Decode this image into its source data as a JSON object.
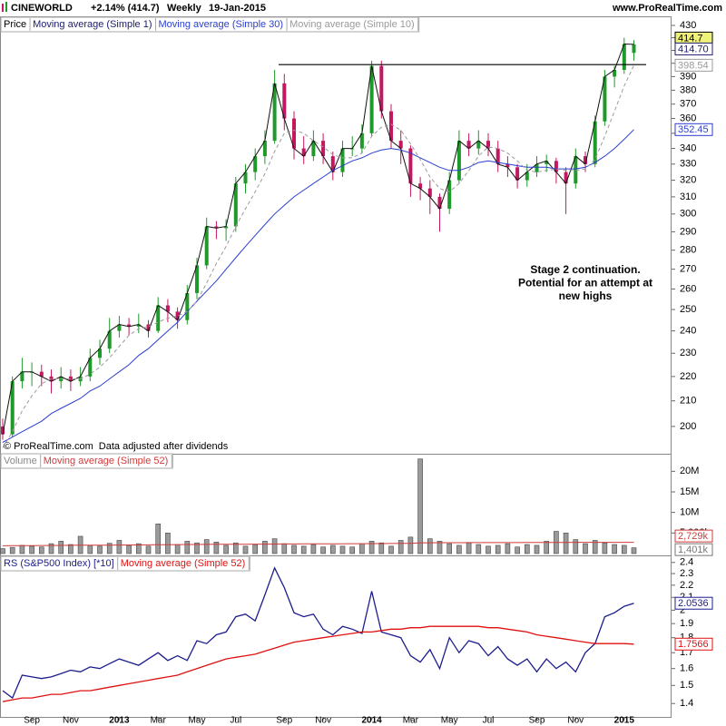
{
  "header": {
    "symbol": "CINEWORLD",
    "change": "+2.14% (414.7)",
    "period": "Weekly",
    "date": "19-Jan-2015",
    "site": "www.ProRealTime.com"
  },
  "chart_data": [
    {
      "type": "candlestick",
      "title": "Price",
      "log_scale": true,
      "categories": [
        null,
        null,
        null,
        "Sep",
        null,
        null,
        null,
        "Nov",
        null,
        null,
        null,
        null,
        "2013",
        null,
        null,
        null,
        "Mar",
        null,
        null,
        null,
        "May",
        null,
        null,
        null,
        "Jul",
        null,
        null,
        null,
        null,
        "Sep",
        null,
        null,
        null,
        "Nov",
        null,
        null,
        null,
        null,
        "2014",
        null,
        null,
        null,
        "Mar",
        null,
        null,
        null,
        "May",
        null,
        null,
        null,
        "Jul",
        null,
        null,
        null,
        null,
        "Sep",
        null,
        null,
        null,
        "Nov",
        null,
        null,
        null,
        null,
        "2015",
        null
      ],
      "candles": [
        [
          200,
          203,
          195,
          197
        ],
        [
          197,
          220,
          196,
          218
        ],
        [
          218,
          228,
          215,
          222
        ],
        [
          222,
          226,
          216,
          222
        ],
        [
          222,
          225,
          216,
          220
        ],
        [
          220,
          223,
          213,
          218
        ],
        [
          218,
          224,
          215,
          220
        ],
        [
          220,
          223,
          214,
          218
        ],
        [
          218,
          224,
          216,
          220
        ],
        [
          220,
          232,
          218,
          228
        ],
        [
          228,
          236,
          225,
          232
        ],
        [
          232,
          246,
          230,
          240
        ],
        [
          240,
          247,
          237,
          243
        ],
        [
          243,
          246,
          238,
          242
        ],
        [
          242,
          248,
          239,
          243
        ],
        [
          243,
          245,
          237,
          240
        ],
        [
          240,
          256,
          239,
          252
        ],
        [
          252,
          255,
          244,
          249
        ],
        [
          249,
          251,
          241,
          245
        ],
        [
          245,
          262,
          243,
          258
        ],
        [
          258,
          276,
          255,
          272
        ],
        [
          272,
          298,
          270,
          293
        ],
        [
          293,
          296,
          286,
          292
        ],
        [
          292,
          297,
          285,
          293
        ],
        [
          293,
          322,
          290,
          318
        ],
        [
          318,
          330,
          312,
          325
        ],
        [
          325,
          340,
          320,
          335
        ],
        [
          335,
          352,
          330,
          345
        ],
        [
          345,
          395,
          343,
          385
        ],
        [
          385,
          392,
          352,
          360
        ],
        [
          360,
          365,
          333,
          340
        ],
        [
          340,
          348,
          330,
          335
        ],
        [
          335,
          352,
          332,
          345
        ],
        [
          345,
          350,
          330,
          335
        ],
        [
          335,
          338,
          320,
          325
        ],
        [
          325,
          345,
          322,
          340
        ],
        [
          340,
          348,
          335,
          340
        ],
        [
          340,
          356,
          337,
          350
        ],
        [
          350,
          402,
          348,
          398
        ],
        [
          398,
          402,
          360,
          365
        ],
        [
          365,
          370,
          340,
          345
        ],
        [
          345,
          352,
          330,
          340
        ],
        [
          340,
          342,
          310,
          318
        ],
        [
          318,
          322,
          308,
          315
        ],
        [
          315,
          320,
          300,
          310
        ],
        [
          310,
          312,
          290,
          303
        ],
        [
          303,
          325,
          300,
          320
        ],
        [
          320,
          352,
          318,
          345
        ],
        [
          345,
          350,
          335,
          340
        ],
        [
          340,
          352,
          336,
          345
        ],
        [
          345,
          350,
          335,
          340
        ],
        [
          340,
          345,
          325,
          330
        ],
        [
          330,
          335,
          322,
          328
        ],
        [
          328,
          330,
          315,
          320
        ],
        [
          320,
          330,
          316,
          325
        ],
        [
          325,
          335,
          322,
          330
        ],
        [
          330,
          336,
          325,
          332
        ],
        [
          332,
          334,
          318,
          325
        ],
        [
          325,
          328,
          300,
          318
        ],
        [
          318,
          340,
          315,
          335
        ],
        [
          335,
          338,
          325,
          330
        ],
        [
          330,
          362,
          328,
          358
        ],
        [
          358,
          395,
          355,
          390
        ],
        [
          390,
          398,
          382,
          395
        ],
        [
          395,
          420,
          392,
          415
        ],
        [
          408,
          418,
          402,
          414.7
        ]
      ],
      "up_color": "#1f9a2a",
      "down_color": "#c4175f",
      "last_label": "414.7",
      "last_label_fill": "#eef27a",
      "series": [
        {
          "name": "Moving average (Simple 1)",
          "color": "#1c1c6e",
          "line_color": "#111111",
          "last_label": "414.70",
          "values": [
            197,
            218,
            222,
            222,
            220,
            218,
            220,
            218,
            220,
            228,
            232,
            240,
            243,
            242,
            243,
            240,
            252,
            249,
            245,
            258,
            272,
            293,
            292,
            293,
            318,
            325,
            335,
            345,
            385,
            360,
            340,
            335,
            345,
            335,
            325,
            340,
            340,
            350,
            398,
            365,
            345,
            340,
            318,
            315,
            310,
            303,
            320,
            345,
            340,
            345,
            340,
            330,
            328,
            320,
            325,
            330,
            332,
            325,
            318,
            335,
            330,
            358,
            390,
            395,
            415,
            414.7
          ]
        },
        {
          "name": "Moving average (Simple 30)",
          "color": "#2a3fd0",
          "last_label": "352.45",
          "values": [
            194,
            196,
            198,
            200,
            202,
            205,
            207,
            209,
            211,
            214,
            216,
            219,
            222,
            225,
            229,
            232,
            236,
            240,
            244,
            249,
            254,
            259,
            264,
            270,
            276,
            282,
            288,
            294,
            300,
            305,
            310,
            314,
            318,
            322,
            326,
            329,
            332,
            334,
            337,
            339,
            340,
            339,
            337,
            334,
            331,
            328,
            326,
            326,
            328,
            331,
            332,
            331,
            330,
            329,
            328,
            328,
            328,
            327,
            327,
            327,
            328,
            331,
            335,
            340,
            346,
            352.45
          ]
        },
        {
          "name": "Moving average (Simple 10)",
          "color": "#9a9a9a",
          "dash": true,
          "last_label": "398.54",
          "values": [
            192,
            198,
            206,
            212,
            217,
            219,
            219,
            219,
            219,
            221,
            224,
            228,
            233,
            238,
            241,
            242,
            244,
            246,
            247,
            249,
            254,
            263,
            273,
            282,
            293,
            303,
            313,
            324,
            338,
            350,
            352,
            350,
            345,
            341,
            336,
            334,
            334,
            337,
            348,
            354,
            356,
            352,
            343,
            333,
            322,
            315,
            313,
            318,
            326,
            335,
            341,
            340,
            337,
            332,
            326,
            325,
            326,
            327,
            326,
            326,
            327,
            333,
            348,
            365,
            383,
            398.54
          ]
        }
      ],
      "ylim": [
        190.5,
        436
      ],
      "yticks": [
        200,
        210,
        220,
        230,
        240,
        250,
        260,
        270,
        280,
        290,
        300,
        310,
        320,
        330,
        340,
        350,
        360,
        370,
        380,
        390,
        400,
        410,
        420,
        430
      ],
      "resistance": 399,
      "annotation": [
        "Stage 2 continuation.",
        "Potential for an attempt at",
        "new highs"
      ],
      "footer": [
        "© ProRealTime.com",
        "Data adjusted after dividends"
      ]
    },
    {
      "type": "bar",
      "title": "Volume",
      "color": "#9a9a9a",
      "title_color": "#888888",
      "values": [
        1.2,
        1.5,
        2.0,
        1.8,
        1.6,
        2.4,
        3.0,
        2.2,
        4.2,
        2.0,
        1.8,
        2.5,
        3.2,
        2.0,
        2.4,
        1.8,
        7.2,
        5.0,
        2.2,
        3.0,
        2.6,
        3.4,
        2.8,
        2.0,
        2.6,
        1.8,
        2.2,
        3.0,
        3.6,
        2.4,
        2.0,
        1.8,
        2.2,
        1.6,
        2.0,
        1.8,
        1.6,
        2.4,
        3.0,
        2.6,
        1.8,
        3.2,
        4.0,
        23.0,
        3.6,
        3.0,
        2.4,
        2.0,
        2.6,
        2.2,
        1.8,
        2.0,
        2.4,
        1.6,
        2.2,
        2.0,
        3.0,
        5.4,
        5.0,
        3.4,
        2.4,
        3.2,
        2.6,
        2.2,
        2.0,
        1.401
      ],
      "last_label": "1,401k",
      "last_label_fill": "#ffffff",
      "series": [
        {
          "name": "Moving average (Simple 52)",
          "color": "#d03a3a",
          "last_label": "2,729k",
          "values": [
            1.9,
            1.92,
            1.93,
            1.95,
            1.96,
            1.97,
            1.99,
            2.0,
            2.02,
            2.03,
            2.04,
            2.06,
            2.07,
            2.09,
            2.1,
            2.12,
            2.14,
            2.16,
            2.18,
            2.2,
            2.21,
            2.23,
            2.25,
            2.26,
            2.27,
            2.28,
            2.29,
            2.3,
            2.32,
            2.33,
            2.34,
            2.35,
            2.36,
            2.37,
            2.38,
            2.39,
            2.4,
            2.41,
            2.42,
            2.43,
            2.45,
            2.46,
            2.48,
            2.62,
            2.63,
            2.64,
            2.65,
            2.65,
            2.66,
            2.66,
            2.66,
            2.67,
            2.67,
            2.67,
            2.68,
            2.68,
            2.69,
            2.71,
            2.72,
            2.73,
            2.73,
            2.73,
            2.73,
            2.73,
            2.73,
            2.729
          ]
        }
      ],
      "ylim": [
        0,
        23.6
      ],
      "yticks": [
        {
          "value": 5,
          "label": "5,000k"
        },
        {
          "value": 10,
          "label": "10M"
        },
        {
          "value": 15,
          "label": "15M"
        },
        {
          "value": 20,
          "label": "20M"
        }
      ]
    },
    {
      "type": "line",
      "log_scale": true,
      "series": [
        {
          "name": "RS (S&P500 Index) [*10]",
          "color": "#1c1c8e",
          "last_label": "2.0536",
          "values": [
            1.47,
            1.43,
            1.56,
            1.55,
            1.54,
            1.55,
            1.57,
            1.59,
            1.58,
            1.61,
            1.6,
            1.63,
            1.66,
            1.64,
            1.62,
            1.66,
            1.7,
            1.65,
            1.68,
            1.65,
            1.78,
            1.76,
            1.82,
            1.84,
            1.95,
            1.97,
            1.92,
            2.12,
            2.35,
            2.18,
            1.98,
            1.95,
            1.97,
            1.86,
            1.82,
            1.88,
            1.86,
            1.83,
            2.15,
            1.84,
            1.82,
            1.8,
            1.68,
            1.64,
            1.72,
            1.6,
            1.8,
            1.7,
            1.78,
            1.76,
            1.68,
            1.74,
            1.66,
            1.62,
            1.66,
            1.58,
            1.66,
            1.6,
            1.64,
            1.58,
            1.7,
            1.76,
            1.95,
            1.98,
            2.03,
            2.0536
          ]
        },
        {
          "name": "Moving average (Simple 52)",
          "color": "#e01010",
          "last_label": "1.7566",
          "values": [
            1.41,
            1.42,
            1.43,
            1.43,
            1.44,
            1.45,
            1.45,
            1.46,
            1.47,
            1.47,
            1.48,
            1.49,
            1.5,
            1.51,
            1.52,
            1.53,
            1.54,
            1.55,
            1.56,
            1.58,
            1.6,
            1.62,
            1.64,
            1.66,
            1.67,
            1.68,
            1.69,
            1.71,
            1.73,
            1.75,
            1.77,
            1.78,
            1.79,
            1.8,
            1.81,
            1.82,
            1.83,
            1.84,
            1.84,
            1.85,
            1.86,
            1.86,
            1.87,
            1.87,
            1.88,
            1.88,
            1.88,
            1.88,
            1.88,
            1.88,
            1.87,
            1.87,
            1.86,
            1.85,
            1.84,
            1.82,
            1.81,
            1.8,
            1.79,
            1.78,
            1.77,
            1.76,
            1.76,
            1.76,
            1.76,
            1.7566
          ]
        }
      ],
      "ylim": [
        1.33,
        2.44
      ],
      "yticks": [
        1.4,
        1.5,
        1.6,
        1.7,
        1.8,
        1.9,
        2,
        2.1,
        2.2,
        2.3,
        2.4
      ]
    }
  ]
}
